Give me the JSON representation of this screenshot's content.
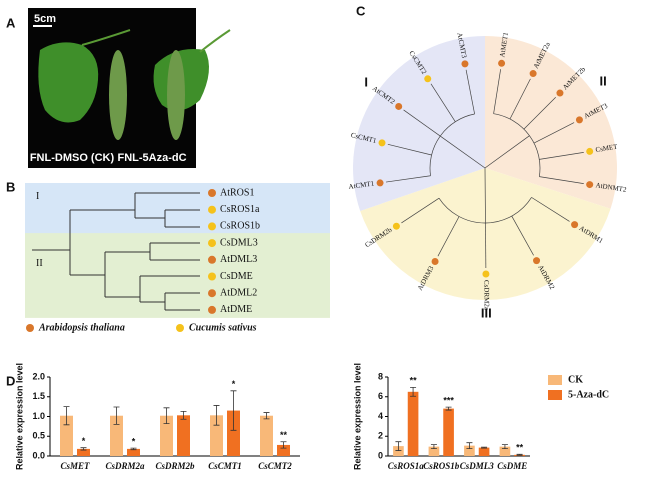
{
  "panels": {
    "A": {
      "label": "A",
      "scale": "5cm",
      "captions": [
        "FNL-DMSO (CK)",
        "FNL-5Aza-dC"
      ]
    },
    "B": {
      "label": "B",
      "groups": [
        {
          "name": "I",
          "color": "#d6e6f7",
          "leaves": [
            {
              "name": "AtROS1",
              "color": "#d9772b"
            },
            {
              "name": "CsROS1a",
              "color": "#f5c21b"
            },
            {
              "name": "CsROS1b",
              "color": "#f5c21b"
            }
          ]
        },
        {
          "name": "II",
          "color": "#e3efd2",
          "leaves": [
            {
              "name": "CsDML3",
              "color": "#f5c21b"
            },
            {
              "name": "AtDML3",
              "color": "#d9772b"
            },
            {
              "name": "CsDME",
              "color": "#f5c21b"
            },
            {
              "name": "AtDML2",
              "color": "#d9772b"
            },
            {
              "name": "AtDME",
              "color": "#d9772b"
            }
          ]
        }
      ],
      "legend": [
        {
          "name": "Arabidopsis thaliana",
          "color": "#d9772b"
        },
        {
          "name": "Cucumis sativus",
          "color": "#f5c21b"
        }
      ]
    },
    "C": {
      "label": "C",
      "groups": [
        {
          "name": "II",
          "color": "#fbe8d6",
          "leaves": [
            {
              "name": "AtMET1",
              "color": "#d9772b"
            },
            {
              "name": "AtMET2a",
              "color": "#d9772b"
            },
            {
              "name": "AtMET2b",
              "color": "#d9772b"
            },
            {
              "name": "AtMET3",
              "color": "#d9772b"
            },
            {
              "name": "CsMET",
              "color": "#f5c21b"
            },
            {
              "name": "AtDNMT2",
              "color": "#d9772b"
            }
          ]
        },
        {
          "name": "III",
          "color": "#fbf3cf",
          "leaves": [
            {
              "name": "AtDRM1",
              "color": "#d9772b"
            },
            {
              "name": "AtDRM2",
              "color": "#d9772b"
            },
            {
              "name": "CsDRM2a",
              "color": "#f5c21b"
            },
            {
              "name": "AtDRM3",
              "color": "#d9772b"
            },
            {
              "name": "CsDRM2b",
              "color": "#f5c21b"
            }
          ]
        },
        {
          "name": "I",
          "color": "#e4e6f6",
          "leaves": [
            {
              "name": "AtCMT1",
              "color": "#d9772b"
            },
            {
              "name": "CsCMT1",
              "color": "#f5c21b"
            },
            {
              "name": "AtCMT2",
              "color": "#d9772b"
            },
            {
              "name": "CsCMT2",
              "color": "#f5c21b"
            },
            {
              "name": "AtCMT3",
              "color": "#d9772b"
            }
          ]
        }
      ]
    },
    "D": {
      "label": "D"
    }
  },
  "chart_data": [
    {
      "type": "bar",
      "y_label": "Relative expression level",
      "categories": [
        "CsMET",
        "CsDRM2a",
        "CsDRM2b",
        "CsCMT1",
        "CsCMT2"
      ],
      "series": [
        {
          "name": "CK",
          "color": "#f8b878",
          "values": [
            1.02,
            1.02,
            1.02,
            1.03,
            1.02
          ],
          "errors": [
            0.23,
            0.22,
            0.2,
            0.25,
            0.08
          ],
          "significance": [
            null,
            null,
            null,
            null,
            null
          ]
        },
        {
          "name": "5-Aza-dC",
          "color": "#f07021",
          "values": [
            0.18,
            0.18,
            1.03,
            1.15,
            0.28
          ],
          "errors": [
            0.03,
            0.02,
            0.1,
            0.5,
            0.08
          ],
          "significance": [
            "*",
            "*",
            null,
            "*",
            "**"
          ]
        }
      ],
      "ylim": [
        0,
        2
      ],
      "yticks": [
        {
          "value": 0,
          "label": "0.0"
        },
        0.5,
        {
          "value": 1,
          "label": "1.0"
        },
        1.5,
        {
          "value": 2,
          "label": "2.0"
        }
      ],
      "legend": "none"
    },
    {
      "type": "bar",
      "y_label": "Relative expression level",
      "categories": [
        "CsROS1a",
        "CsROS1b",
        "CsDML3",
        "CsDME"
      ],
      "series": [
        {
          "name": "CK",
          "color": "#f8b878",
          "values": [
            1.0,
            0.95,
            1.05,
            0.95
          ],
          "errors": [
            0.45,
            0.2,
            0.3,
            0.2
          ],
          "significance": [
            null,
            null,
            null,
            null
          ]
        },
        {
          "name": "5-Aza-dC",
          "color": "#f07021",
          "values": [
            6.5,
            4.8,
            0.85,
            0.12
          ],
          "errors": [
            0.45,
            0.15,
            0.05,
            0.05
          ],
          "significance": [
            "**",
            "***",
            null,
            "**"
          ]
        }
      ],
      "ylim": [
        0,
        8
      ],
      "yticks": [
        0,
        2,
        4,
        6,
        8
      ],
      "legend": "upper right"
    }
  ]
}
